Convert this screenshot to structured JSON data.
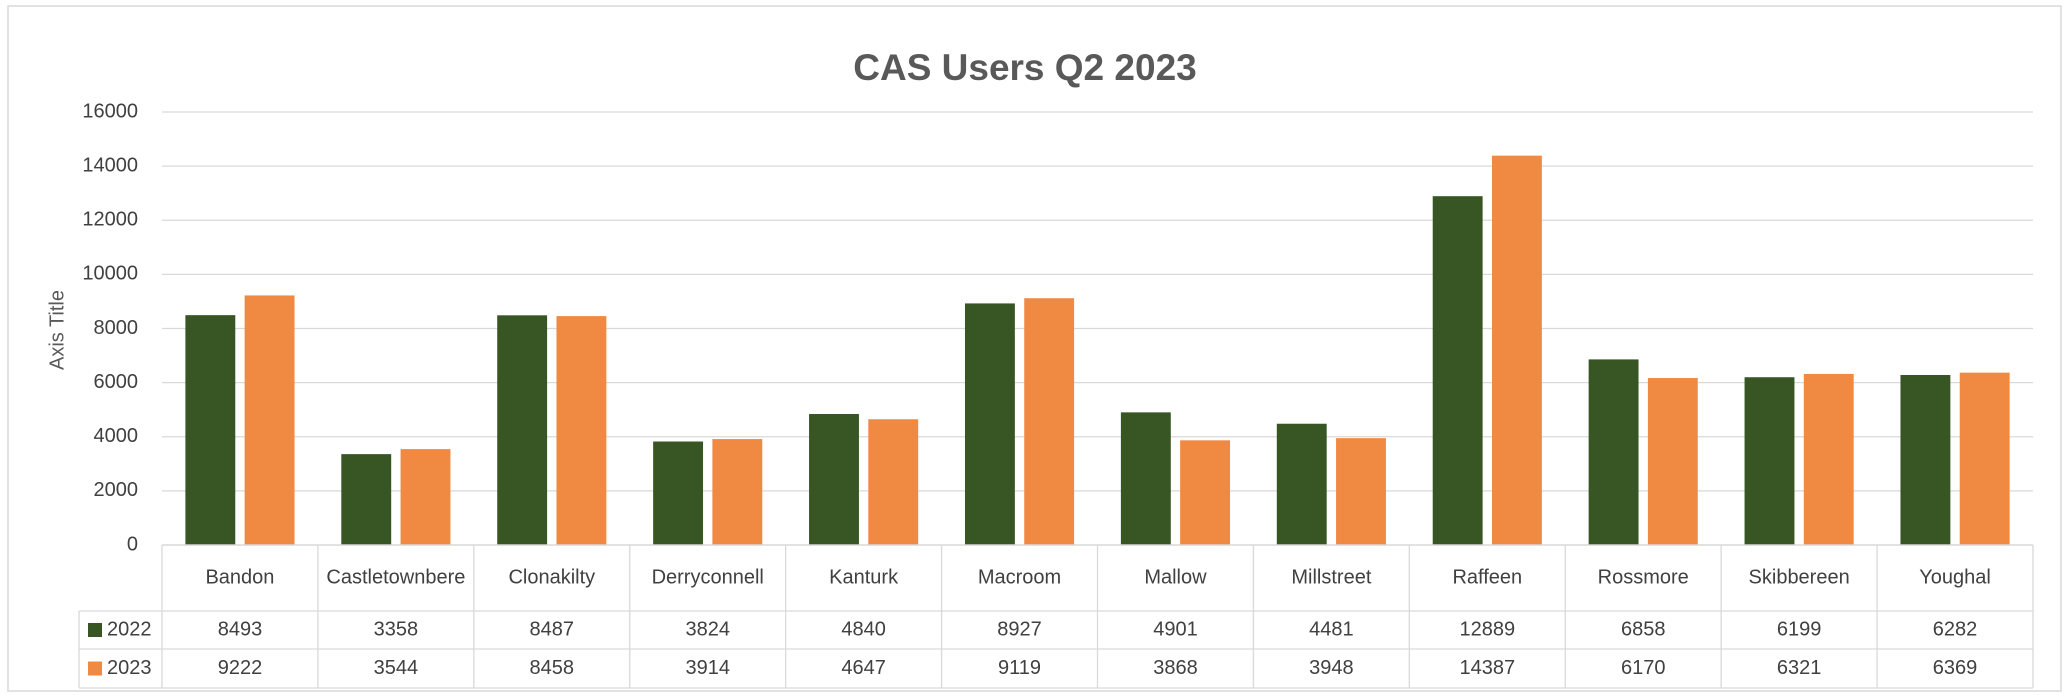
{
  "chart_data": {
    "type": "bar",
    "title": "CAS Users Q2 2023",
    "y_axis_label": "Axis Title",
    "categories": [
      "Bandon",
      "Castletownbere",
      "Clonakilty",
      "Derryconnell",
      "Kanturk",
      "Macroom",
      "Mallow",
      "Millstreet",
      "Raffeen",
      "Rossmore",
      "Skibbereen",
      "Youghal"
    ],
    "series": [
      {
        "name": "2022",
        "color": "#375623",
        "values": [
          8493,
          3358,
          8487,
          3824,
          4840,
          8927,
          4901,
          4481,
          12889,
          6858,
          6199,
          6282
        ]
      },
      {
        "name": "2023",
        "color": "#f08a43",
        "values": [
          9222,
          3544,
          8458,
          3914,
          4647,
          9119,
          3868,
          3948,
          14387,
          6170,
          6321,
          6369
        ]
      }
    ],
    "ylim": [
      0,
      16000
    ],
    "yticks": [
      0,
      2000,
      4000,
      6000,
      8000,
      10000,
      12000,
      14000,
      16000
    ],
    "grid": true,
    "data_table": true
  }
}
